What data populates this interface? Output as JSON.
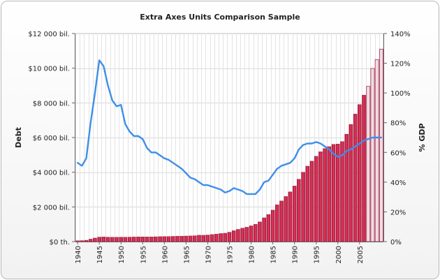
{
  "chart_data": {
    "type": "bar+line",
    "title": "Extra Axes Units Comparison Sample",
    "years": [
      1940,
      1941,
      1942,
      1943,
      1944,
      1945,
      1946,
      1947,
      1948,
      1949,
      1950,
      1951,
      1952,
      1953,
      1954,
      1955,
      1956,
      1957,
      1958,
      1959,
      1960,
      1961,
      1962,
      1963,
      1964,
      1965,
      1966,
      1967,
      1968,
      1969,
      1970,
      1971,
      1972,
      1973,
      1974,
      1975,
      1976,
      1977,
      1978,
      1979,
      1980,
      1981,
      1982,
      1983,
      1984,
      1985,
      1986,
      1987,
      1988,
      1989,
      1990,
      1991,
      1992,
      1993,
      1994,
      1995,
      1996,
      1997,
      1998,
      1999,
      2000,
      2001,
      2002,
      2003,
      2004,
      2005,
      2006,
      2007,
      2008,
      2009,
      2010
    ],
    "x_tick_labels": [
      "1940",
      "1945",
      "1950",
      "1955",
      "1960",
      "1965",
      "1970",
      "1975",
      "1980",
      "1985",
      "1990",
      "1995",
      "2000",
      "2005"
    ],
    "y_left": {
      "label": "Debt",
      "min": 0,
      "max": 12000,
      "ticks": [
        0,
        2000,
        4000,
        6000,
        8000,
        10000,
        12000
      ],
      "tick_labels": [
        "$0 th.",
        "$2 000 bil.",
        "$4 000 bil.",
        "$6 000 bil.",
        "$8 000 bil.",
        "$10 000 bil.",
        "$12 000 bil."
      ]
    },
    "y_right": {
      "label": "% GDP",
      "min": 0,
      "max": 140,
      "ticks": [
        0,
        20,
        40,
        60,
        80,
        100,
        120,
        140
      ],
      "tick_labels": [
        "0%",
        "20%",
        "40%",
        "60%",
        "80%",
        "100%",
        "120%",
        "140%"
      ]
    },
    "series": [
      {
        "name": "Debt",
        "type": "bar",
        "axis": "left",
        "color": "#cc2147",
        "projected_from": 2007,
        "projected_color": "#f2dce3",
        "values": [
          51,
          58,
          79,
          143,
          204,
          260,
          271,
          257,
          252,
          253,
          257,
          255,
          259,
          266,
          271,
          274,
          273,
          272,
          280,
          287,
          291,
          293,
          303,
          310,
          316,
          322,
          328,
          340,
          368,
          366,
          381,
          408,
          436,
          466,
          484,
          542,
          629,
          706,
          777,
          829,
          909,
          995,
          1137,
          1372,
          1565,
          1817,
          2121,
          2346,
          2601,
          2868,
          3206,
          3598,
          4002,
          4351,
          4643,
          4921,
          5181,
          5369,
          5478,
          5606,
          5629,
          5770,
          6198,
          6760,
          7355,
          7905,
          8451,
          8951,
          9986,
          10500,
          11100
        ]
      },
      {
        "name": "% GDP",
        "type": "line",
        "axis": "right",
        "color": "#3d8fe8",
        "values": [
          53,
          51,
          56,
          80,
          100,
          122,
          118,
          105,
          95,
          91,
          92,
          79,
          74,
          71,
          71,
          69,
          63,
          60,
          60,
          58,
          56,
          55,
          53,
          51,
          49,
          46,
          43,
          42,
          40,
          38,
          38,
          37,
          36,
          35,
          33,
          34,
          36,
          35,
          34,
          32,
          32,
          32,
          35,
          40,
          41,
          45,
          49,
          51,
          52,
          53,
          56,
          62,
          65,
          66,
          66,
          67,
          66,
          64,
          62,
          59,
          57,
          58,
          61,
          62,
          64,
          66,
          68,
          69,
          70,
          70,
          70
        ]
      }
    ]
  }
}
